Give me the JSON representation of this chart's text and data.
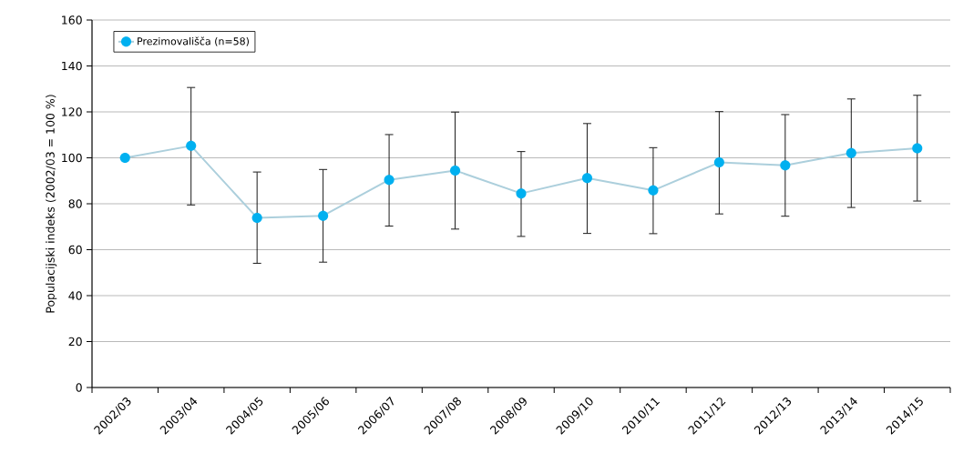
{
  "chart_data": {
    "type": "line",
    "ylabel": "Populacijski indeks (2002/03 = 100 %)",
    "categories": [
      "2002/03",
      "2003/04",
      "2004/05",
      "2005/06",
      "2006/07",
      "2007/08",
      "2008/09",
      "2009/10",
      "2010/11",
      "2011/12",
      "2012/13",
      "2013/14",
      "2014/15"
    ],
    "series": [
      {
        "name": "Prezimovališča (n=58)",
        "color": "#00b0f0",
        "values": [
          100,
          105.2,
          73.9,
          74.8,
          90.4,
          94.5,
          84.5,
          91.2,
          85.8,
          98.0,
          96.7,
          102.1,
          104.2
        ],
        "errors": [
          null,
          [
            79.3,
            130.8
          ],
          [
            53.9,
            94.0
          ],
          [
            54.4,
            95.1
          ],
          [
            70.1,
            110.3
          ],
          [
            68.8,
            120.1
          ],
          [
            65.6,
            102.9
          ],
          [
            66.9,
            115.1
          ],
          [
            66.8,
            104.6
          ],
          [
            75.4,
            120.3
          ],
          [
            74.4,
            119.0
          ],
          [
            78.2,
            125.8
          ],
          [
            81.0,
            127.4
          ]
        ]
      }
    ],
    "ylim": [
      0,
      160
    ],
    "yticks": [
      0,
      20,
      40,
      60,
      80,
      100,
      120,
      140,
      160
    ],
    "grid": "y",
    "legend": "top left",
    "marker": "circle",
    "line_style": "solid"
  }
}
